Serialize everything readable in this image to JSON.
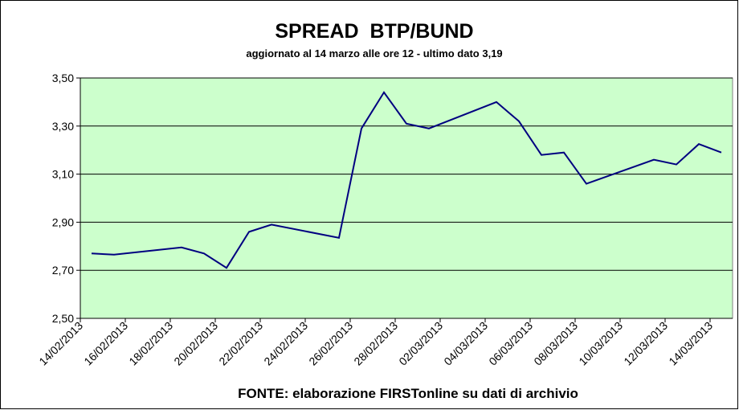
{
  "chart_data": {
    "type": "line",
    "title": "SPREAD  BTP/BUND",
    "subtitle": "aggiornato al 14 marzo alle ore 12 - ultimo dato 3,19",
    "footnote": "FONTE: elaborazione FIRSTonline su dati di archivio",
    "x": [
      "14/02/2013",
      "15/02/2013",
      "18/02/2013",
      "19/02/2013",
      "20/02/2013",
      "21/02/2013",
      "22/02/2013",
      "25/02/2013",
      "26/02/2013",
      "27/02/2013",
      "28/02/2013",
      "01/03/2013",
      "04/03/2013",
      "05/03/2013",
      "06/03/2013",
      "07/03/2013",
      "08/03/2013",
      "11/03/2013",
      "12/03/2013",
      "13/03/2013",
      "14/03/2013"
    ],
    "series": [
      {
        "color": "#000080",
        "values": [
          2.77,
          2.765,
          2.795,
          2.77,
          2.71,
          2.86,
          2.89,
          2.835,
          3.29,
          3.44,
          3.31,
          3.29,
          3.4,
          3.32,
          3.18,
          3.19,
          3.06,
          3.16,
          3.14,
          3.225,
          3.19
        ]
      }
    ],
    "xlim": [
      "14/02/2013",
      "15/03/2013"
    ],
    "xticks": [
      "14/02/2013",
      "16/02/2013",
      "18/02/2013",
      "20/02/2013",
      "22/02/2013",
      "24/02/2013",
      "26/02/2013",
      "28/02/2013",
      "02/03/2013",
      "04/03/2013",
      "06/03/2013",
      "08/03/2013",
      "10/03/2013",
      "12/03/2013",
      "14/03/2013"
    ],
    "ylim": [
      2.5,
      3.5
    ],
    "yticks": [
      {
        "value": 2.5,
        "label": "2,50"
      },
      {
        "value": 2.7,
        "label": "2,70"
      },
      {
        "value": 2.9,
        "label": "2,90"
      },
      {
        "value": 3.1,
        "label": "3,10"
      },
      {
        "value": 3.3,
        "label": "3,30"
      },
      {
        "value": 3.5,
        "label": "3,50"
      }
    ],
    "grid": true,
    "plot_background": "#ccffcc"
  }
}
